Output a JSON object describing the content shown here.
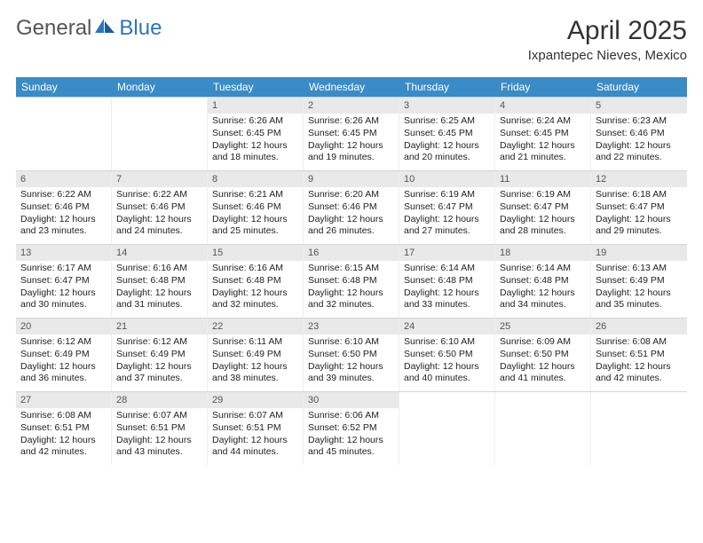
{
  "logo": {
    "text_gray": "General",
    "text_blue": "Blue"
  },
  "header": {
    "month_title": "April 2025",
    "location": "Ixpantepec Nieves, Mexico"
  },
  "colors": {
    "header_bg": "#3b8bc6",
    "header_text": "#ffffff",
    "daynum_bg": "#e9e9e9",
    "logo_blue": "#2e75b6",
    "logo_gray": "#555555",
    "border": "#d5d5d5"
  },
  "weekdays": [
    "Sunday",
    "Monday",
    "Tuesday",
    "Wednesday",
    "Thursday",
    "Friday",
    "Saturday"
  ],
  "weeks": [
    [
      {
        "day": "",
        "sunrise": "",
        "sunset": "",
        "daylight1": "",
        "daylight2": ""
      },
      {
        "day": "",
        "sunrise": "",
        "sunset": "",
        "daylight1": "",
        "daylight2": ""
      },
      {
        "day": "1",
        "sunrise": "Sunrise: 6:26 AM",
        "sunset": "Sunset: 6:45 PM",
        "daylight1": "Daylight: 12 hours",
        "daylight2": "and 18 minutes."
      },
      {
        "day": "2",
        "sunrise": "Sunrise: 6:26 AM",
        "sunset": "Sunset: 6:45 PM",
        "daylight1": "Daylight: 12 hours",
        "daylight2": "and 19 minutes."
      },
      {
        "day": "3",
        "sunrise": "Sunrise: 6:25 AM",
        "sunset": "Sunset: 6:45 PM",
        "daylight1": "Daylight: 12 hours",
        "daylight2": "and 20 minutes."
      },
      {
        "day": "4",
        "sunrise": "Sunrise: 6:24 AM",
        "sunset": "Sunset: 6:45 PM",
        "daylight1": "Daylight: 12 hours",
        "daylight2": "and 21 minutes."
      },
      {
        "day": "5",
        "sunrise": "Sunrise: 6:23 AM",
        "sunset": "Sunset: 6:46 PM",
        "daylight1": "Daylight: 12 hours",
        "daylight2": "and 22 minutes."
      }
    ],
    [
      {
        "day": "6",
        "sunrise": "Sunrise: 6:22 AM",
        "sunset": "Sunset: 6:46 PM",
        "daylight1": "Daylight: 12 hours",
        "daylight2": "and 23 minutes."
      },
      {
        "day": "7",
        "sunrise": "Sunrise: 6:22 AM",
        "sunset": "Sunset: 6:46 PM",
        "daylight1": "Daylight: 12 hours",
        "daylight2": "and 24 minutes."
      },
      {
        "day": "8",
        "sunrise": "Sunrise: 6:21 AM",
        "sunset": "Sunset: 6:46 PM",
        "daylight1": "Daylight: 12 hours",
        "daylight2": "and 25 minutes."
      },
      {
        "day": "9",
        "sunrise": "Sunrise: 6:20 AM",
        "sunset": "Sunset: 6:46 PM",
        "daylight1": "Daylight: 12 hours",
        "daylight2": "and 26 minutes."
      },
      {
        "day": "10",
        "sunrise": "Sunrise: 6:19 AM",
        "sunset": "Sunset: 6:47 PM",
        "daylight1": "Daylight: 12 hours",
        "daylight2": "and 27 minutes."
      },
      {
        "day": "11",
        "sunrise": "Sunrise: 6:19 AM",
        "sunset": "Sunset: 6:47 PM",
        "daylight1": "Daylight: 12 hours",
        "daylight2": "and 28 minutes."
      },
      {
        "day": "12",
        "sunrise": "Sunrise: 6:18 AM",
        "sunset": "Sunset: 6:47 PM",
        "daylight1": "Daylight: 12 hours",
        "daylight2": "and 29 minutes."
      }
    ],
    [
      {
        "day": "13",
        "sunrise": "Sunrise: 6:17 AM",
        "sunset": "Sunset: 6:47 PM",
        "daylight1": "Daylight: 12 hours",
        "daylight2": "and 30 minutes."
      },
      {
        "day": "14",
        "sunrise": "Sunrise: 6:16 AM",
        "sunset": "Sunset: 6:48 PM",
        "daylight1": "Daylight: 12 hours",
        "daylight2": "and 31 minutes."
      },
      {
        "day": "15",
        "sunrise": "Sunrise: 6:16 AM",
        "sunset": "Sunset: 6:48 PM",
        "daylight1": "Daylight: 12 hours",
        "daylight2": "and 32 minutes."
      },
      {
        "day": "16",
        "sunrise": "Sunrise: 6:15 AM",
        "sunset": "Sunset: 6:48 PM",
        "daylight1": "Daylight: 12 hours",
        "daylight2": "and 32 minutes."
      },
      {
        "day": "17",
        "sunrise": "Sunrise: 6:14 AM",
        "sunset": "Sunset: 6:48 PM",
        "daylight1": "Daylight: 12 hours",
        "daylight2": "and 33 minutes."
      },
      {
        "day": "18",
        "sunrise": "Sunrise: 6:14 AM",
        "sunset": "Sunset: 6:48 PM",
        "daylight1": "Daylight: 12 hours",
        "daylight2": "and 34 minutes."
      },
      {
        "day": "19",
        "sunrise": "Sunrise: 6:13 AM",
        "sunset": "Sunset: 6:49 PM",
        "daylight1": "Daylight: 12 hours",
        "daylight2": "and 35 minutes."
      }
    ],
    [
      {
        "day": "20",
        "sunrise": "Sunrise: 6:12 AM",
        "sunset": "Sunset: 6:49 PM",
        "daylight1": "Daylight: 12 hours",
        "daylight2": "and 36 minutes."
      },
      {
        "day": "21",
        "sunrise": "Sunrise: 6:12 AM",
        "sunset": "Sunset: 6:49 PM",
        "daylight1": "Daylight: 12 hours",
        "daylight2": "and 37 minutes."
      },
      {
        "day": "22",
        "sunrise": "Sunrise: 6:11 AM",
        "sunset": "Sunset: 6:49 PM",
        "daylight1": "Daylight: 12 hours",
        "daylight2": "and 38 minutes."
      },
      {
        "day": "23",
        "sunrise": "Sunrise: 6:10 AM",
        "sunset": "Sunset: 6:50 PM",
        "daylight1": "Daylight: 12 hours",
        "daylight2": "and 39 minutes."
      },
      {
        "day": "24",
        "sunrise": "Sunrise: 6:10 AM",
        "sunset": "Sunset: 6:50 PM",
        "daylight1": "Daylight: 12 hours",
        "daylight2": "and 40 minutes."
      },
      {
        "day": "25",
        "sunrise": "Sunrise: 6:09 AM",
        "sunset": "Sunset: 6:50 PM",
        "daylight1": "Daylight: 12 hours",
        "daylight2": "and 41 minutes."
      },
      {
        "day": "26",
        "sunrise": "Sunrise: 6:08 AM",
        "sunset": "Sunset: 6:51 PM",
        "daylight1": "Daylight: 12 hours",
        "daylight2": "and 42 minutes."
      }
    ],
    [
      {
        "day": "27",
        "sunrise": "Sunrise: 6:08 AM",
        "sunset": "Sunset: 6:51 PM",
        "daylight1": "Daylight: 12 hours",
        "daylight2": "and 42 minutes."
      },
      {
        "day": "28",
        "sunrise": "Sunrise: 6:07 AM",
        "sunset": "Sunset: 6:51 PM",
        "daylight1": "Daylight: 12 hours",
        "daylight2": "and 43 minutes."
      },
      {
        "day": "29",
        "sunrise": "Sunrise: 6:07 AM",
        "sunset": "Sunset: 6:51 PM",
        "daylight1": "Daylight: 12 hours",
        "daylight2": "and 44 minutes."
      },
      {
        "day": "30",
        "sunrise": "Sunrise: 6:06 AM",
        "sunset": "Sunset: 6:52 PM",
        "daylight1": "Daylight: 12 hours",
        "daylight2": "and 45 minutes."
      },
      {
        "day": "",
        "sunrise": "",
        "sunset": "",
        "daylight1": "",
        "daylight2": ""
      },
      {
        "day": "",
        "sunrise": "",
        "sunset": "",
        "daylight1": "",
        "daylight2": ""
      },
      {
        "day": "",
        "sunrise": "",
        "sunset": "",
        "daylight1": "",
        "daylight2": ""
      }
    ]
  ]
}
